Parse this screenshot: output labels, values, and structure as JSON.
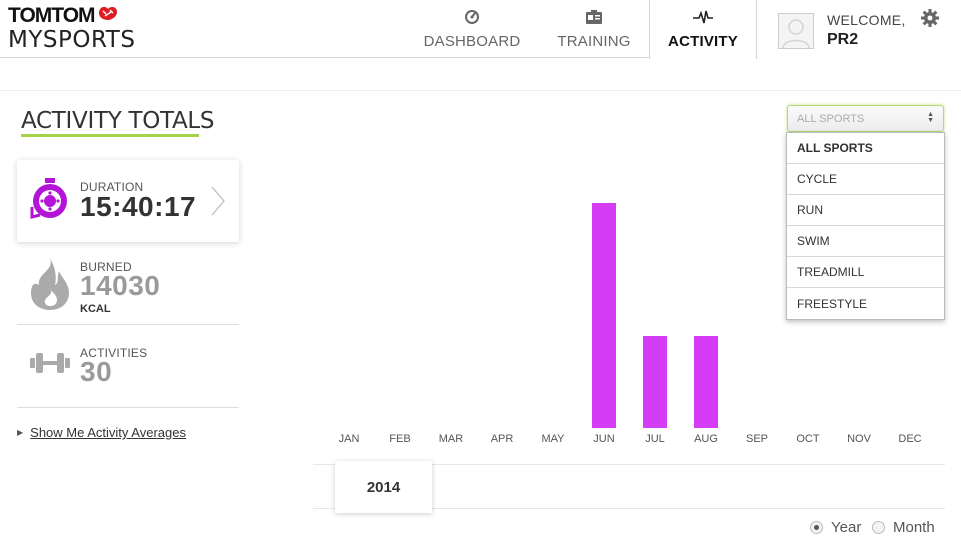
{
  "logo": {
    "line1": "TOMTOM",
    "line2": "MYSPORTS"
  },
  "nav": {
    "items": [
      {
        "label": "DASHBOARD",
        "icon": "dashboard-icon"
      },
      {
        "label": "TRAINING",
        "icon": "training-icon"
      },
      {
        "label": "ACTIVITY",
        "icon": "activity-pulse-icon",
        "active": true
      }
    ]
  },
  "user": {
    "welcome": "WELCOME,",
    "name": "PR2"
  },
  "totals": {
    "title": "ACTIVITY TOTALS",
    "duration": {
      "label": "DURATION",
      "value": "15:40:17",
      "color": "#b314d8"
    },
    "burned": {
      "label": "BURNED",
      "value": "14030",
      "unit": "KCAL",
      "color": "#9a9a9a"
    },
    "activities": {
      "label": "ACTIVITIES",
      "value": "30",
      "color": "#9a9a9a"
    },
    "averages_link": "Show Me Activity Averages"
  },
  "filter": {
    "selected": "ALL SPORTS",
    "options": [
      "ALL SPORTS",
      "CYCLE",
      "RUN",
      "SWIM",
      "TREADMILL",
      "FREESTYLE"
    ]
  },
  "chart_data": {
    "type": "bar",
    "categories": [
      "JAN",
      "FEB",
      "MAR",
      "APR",
      "MAY",
      "JUN",
      "JUL",
      "AUG",
      "SEP",
      "OCT",
      "NOV",
      "DEC"
    ],
    "values": [
      0,
      0,
      0,
      0,
      0,
      1,
      0.41,
      0.41,
      0,
      0,
      0,
      0
    ],
    "bar_color": "#d53cf5",
    "title": "",
    "xlabel": "",
    "ylabel": ""
  },
  "period": {
    "year": "2014",
    "views": [
      {
        "label": "Year",
        "checked": true
      },
      {
        "label": "Month",
        "checked": false
      }
    ]
  }
}
